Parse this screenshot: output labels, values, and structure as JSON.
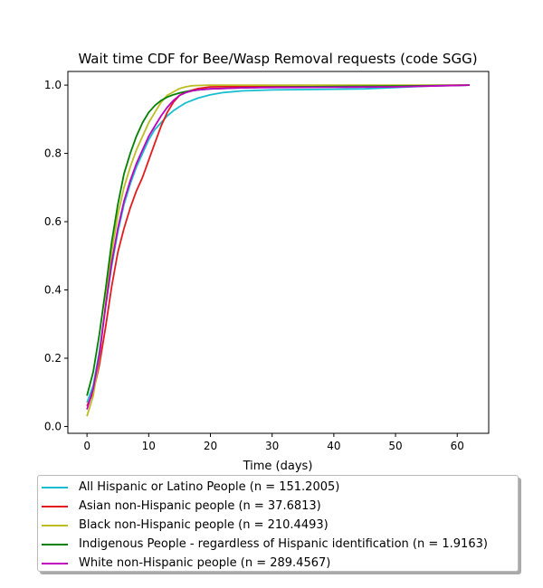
{
  "chart_data": {
    "type": "line",
    "title": "Wait time CDF for Bee/Wasp Removal  requests (code SGG)",
    "xlabel": "Time (days)",
    "ylabel": "",
    "xlim": [
      -3.1,
      65.1
    ],
    "ylim": [
      -0.02,
      1.04
    ],
    "xticks": [
      0,
      10,
      20,
      30,
      40,
      50,
      60
    ],
    "yticks": [
      0.0,
      0.2,
      0.4,
      0.6,
      0.8,
      1.0
    ],
    "xtick_labels": [
      "0",
      "10",
      "20",
      "30",
      "40",
      "50",
      "60"
    ],
    "ytick_labels": [
      "0.0",
      "0.2",
      "0.4",
      "0.6",
      "0.8",
      "1.0"
    ],
    "grid": false,
    "legend_placement": "below",
    "series": [
      {
        "name": "All Hispanic or Latino People (n = 151.2005)",
        "color": "#17becf",
        "x": [
          0,
          1,
          2,
          3,
          4,
          5,
          6,
          7,
          8,
          9,
          10,
          11,
          12,
          13,
          14,
          15,
          16,
          18,
          20,
          22,
          25,
          30,
          35,
          40,
          45,
          50,
          55,
          62
        ],
        "y": [
          0.07,
          0.12,
          0.22,
          0.35,
          0.47,
          0.57,
          0.65,
          0.71,
          0.76,
          0.8,
          0.84,
          0.87,
          0.89,
          0.91,
          0.925,
          0.937,
          0.948,
          0.962,
          0.972,
          0.978,
          0.983,
          0.986,
          0.987,
          0.988,
          0.989,
          0.993,
          0.997,
          1.0
        ]
      },
      {
        "name": "Asian non-Hispanic people (n = 37.6813)",
        "color": "#e41a1c",
        "x": [
          0,
          1,
          2,
          3,
          4,
          5,
          6,
          7,
          8,
          9,
          10,
          11,
          12,
          13,
          14,
          15,
          16,
          18,
          20,
          25,
          30,
          40,
          50,
          55,
          62
        ],
        "y": [
          0.06,
          0.1,
          0.18,
          0.29,
          0.41,
          0.51,
          0.58,
          0.64,
          0.69,
          0.73,
          0.78,
          0.83,
          0.88,
          0.92,
          0.95,
          0.97,
          0.98,
          0.99,
          0.995,
          0.996,
          0.997,
          0.998,
          0.998,
          0.999,
          1.0
        ]
      },
      {
        "name": "Black non-Hispanic people (n = 210.4493)",
        "color": "#bcbd22",
        "x": [
          0,
          1,
          2,
          3,
          4,
          5,
          6,
          7,
          8,
          9,
          10,
          11,
          12,
          13,
          14,
          15,
          16,
          17,
          18,
          20,
          25,
          30,
          40,
          50,
          62
        ],
        "y": [
          0.03,
          0.09,
          0.2,
          0.36,
          0.51,
          0.62,
          0.7,
          0.76,
          0.81,
          0.85,
          0.89,
          0.92,
          0.95,
          0.97,
          0.98,
          0.99,
          0.995,
          0.998,
          0.999,
          1.0,
          1.0,
          1.0,
          1.0,
          1.0,
          1.0
        ]
      },
      {
        "name": "Indigenous People - regardless of Hispanic identification (n = 1.9163)",
        "color": "#008000",
        "x": [
          0,
          1,
          2,
          3,
          4,
          5,
          6,
          7,
          8,
          9,
          10,
          11,
          12,
          13,
          14,
          15,
          16,
          18,
          20,
          25,
          30,
          40,
          50,
          55,
          62
        ],
        "y": [
          0.09,
          0.16,
          0.27,
          0.4,
          0.54,
          0.65,
          0.74,
          0.8,
          0.85,
          0.89,
          0.92,
          0.94,
          0.955,
          0.965,
          0.972,
          0.977,
          0.981,
          0.986,
          0.989,
          0.992,
          0.994,
          0.996,
          0.997,
          0.998,
          1.0
        ]
      },
      {
        "name": "White non-Hispanic people (n = 289.4567)",
        "color": "#bf00bf",
        "x": [
          0,
          1,
          2,
          3,
          4,
          5,
          6,
          7,
          8,
          9,
          10,
          11,
          12,
          13,
          14,
          15,
          16,
          17,
          18,
          20,
          25,
          30,
          40,
          50,
          55,
          62
        ],
        "y": [
          0.05,
          0.11,
          0.21,
          0.35,
          0.48,
          0.58,
          0.66,
          0.72,
          0.77,
          0.81,
          0.85,
          0.88,
          0.91,
          0.935,
          0.955,
          0.97,
          0.978,
          0.983,
          0.986,
          0.989,
          0.992,
          0.993,
          0.994,
          0.995,
          0.997,
          1.0
        ]
      }
    ]
  }
}
